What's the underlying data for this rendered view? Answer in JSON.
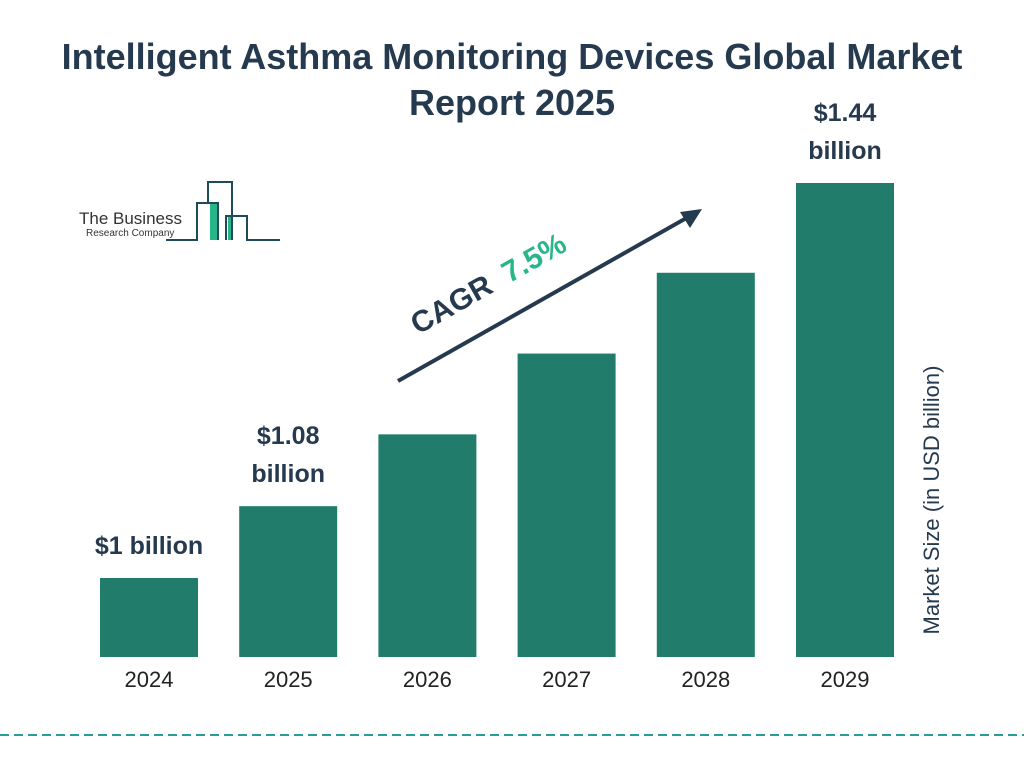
{
  "chart_data": {
    "type": "bar",
    "title": "Intelligent Asthma Monitoring Devices Global Market Report 2025",
    "categories": [
      "2024",
      "2025",
      "2026",
      "2027",
      "2028",
      "2029"
    ],
    "values": [
      1.0,
      1.08,
      1.16,
      1.25,
      1.34,
      1.44
    ],
    "data_labels": [
      {
        "index": 0,
        "lines": [
          "$1 billion"
        ]
      },
      {
        "index": 1,
        "lines": [
          "$1.08",
          "billion"
        ]
      },
      {
        "index": 5,
        "lines": [
          "$1.44",
          "billion"
        ]
      }
    ],
    "xlabel": "",
    "ylabel": "Market Size (in USD billion)",
    "annotation": {
      "prefix": "CAGR",
      "value": "7.5%"
    },
    "grid": false,
    "colors": {
      "bar": "#217c6b",
      "text": "#263a4f",
      "accent": "#27b589",
      "dashed_line": "#2a9d98"
    }
  },
  "logo": {
    "line1": "The Business",
    "line2": "Research Company"
  }
}
